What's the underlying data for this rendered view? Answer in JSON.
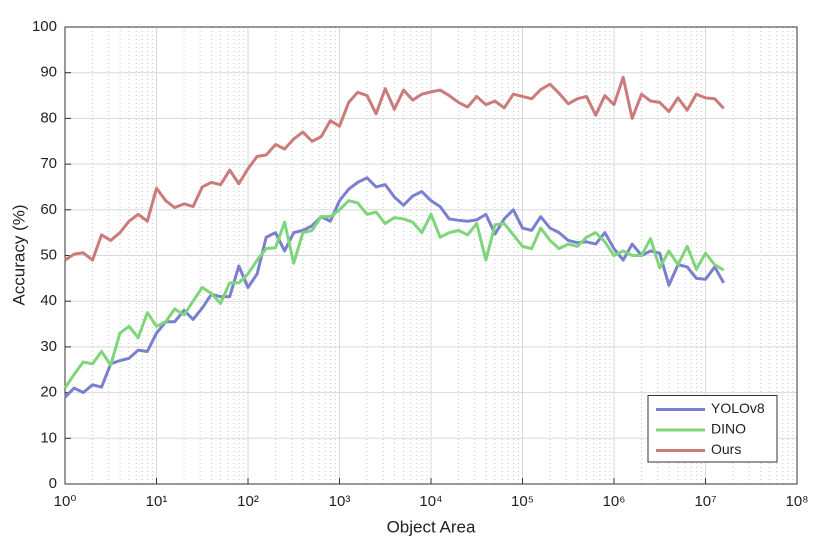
{
  "chart_data": {
    "type": "line",
    "xlabel": "Object Area",
    "ylabel": "Accuracy (%)",
    "x_scale": "log",
    "grid": true,
    "minor_grid": true,
    "legend_position": "lower right",
    "xlim": [
      1,
      100000000
    ],
    "ylim": [
      0,
      100
    ],
    "xticks": [
      {
        "value": 1,
        "label": "10⁰"
      },
      {
        "value": 10,
        "label": "10¹"
      },
      {
        "value": 100,
        "label": "10²"
      },
      {
        "value": 1000,
        "label": "10³"
      },
      {
        "value": 10000,
        "label": "10⁴"
      },
      {
        "value": 100000,
        "label": "10⁵"
      },
      {
        "value": 1000000,
        "label": "10⁶"
      },
      {
        "value": 10000000,
        "label": "10⁷"
      },
      {
        "value": 100000000,
        "label": "10⁸"
      }
    ],
    "yticks": [
      0,
      10,
      20,
      30,
      40,
      50,
      60,
      70,
      80,
      90,
      100
    ],
    "x": [
      1,
      1.26,
      1.58,
      2,
      2.51,
      3.16,
      3.98,
      5.01,
      6.31,
      7.94,
      10,
      12.6,
      15.8,
      20,
      25.1,
      31.6,
      39.8,
      50.1,
      63.1,
      79.4,
      100,
      126,
      158,
      200,
      251,
      316,
      398,
      501,
      631,
      794,
      1000,
      1260,
      1580,
      2000,
      2510,
      3160,
      3980,
      5010,
      6310,
      7940,
      10000,
      12600,
      15800,
      20000,
      25100,
      31600,
      39800,
      50100,
      63100,
      79400,
      100000,
      126000,
      158000,
      200000,
      251000,
      316000,
      398000,
      501000,
      631000,
      794000,
      1000000,
      1260000,
      1580000,
      2000000,
      2510000,
      3160000,
      3980000,
      5010000,
      6310000,
      7940000,
      10000000,
      12600000,
      15800000
    ],
    "series": [
      {
        "name": "YOLOv8",
        "color": "#7b7fd0",
        "values": [
          19,
          21,
          20,
          21.7,
          21.2,
          26.3,
          27,
          27.5,
          29.3,
          29,
          33,
          35.5,
          35.5,
          38,
          36,
          38.5,
          41.5,
          41,
          41,
          47.7,
          43,
          46,
          54,
          55,
          51,
          55,
          55.5,
          56.5,
          58.5,
          57.5,
          62,
          64.5,
          66,
          67,
          65,
          65.5,
          62.8,
          61,
          63,
          64,
          62,
          60.7,
          58,
          57.7,
          57.5,
          57.8,
          59,
          54.7,
          58,
          60,
          56,
          55.5,
          58.5,
          56,
          55,
          53.3,
          52.8,
          53,
          52.5,
          55,
          51.5,
          49,
          52.5,
          50,
          51,
          50.5,
          43.5,
          48,
          47.5,
          45,
          44.8,
          47.5,
          44
        ]
      },
      {
        "name": "DINO",
        "color": "#7fd67a",
        "values": [
          21,
          24,
          26.7,
          26.3,
          29,
          26,
          33,
          34.5,
          32,
          37.5,
          34.5,
          35.5,
          38.3,
          37,
          40,
          43,
          41.7,
          39.5,
          44,
          44,
          46,
          49,
          51.5,
          51.7,
          57.3,
          48.3,
          55,
          55.5,
          58.5,
          58.5,
          60,
          62,
          61.5,
          59,
          59.5,
          57,
          58.3,
          58,
          57.3,
          55,
          59,
          54,
          55,
          55.5,
          54.5,
          57,
          49,
          56.7,
          57,
          54.5,
          52,
          51.5,
          56,
          53.3,
          51.5,
          52.5,
          52,
          54,
          55,
          53,
          50,
          51,
          50,
          50,
          53.7,
          47.3,
          51,
          48,
          52,
          47,
          50.5,
          48,
          46.8
        ]
      },
      {
        "name": "Ours",
        "color": "#cc7b7b",
        "values": [
          49,
          50.3,
          50.6,
          49,
          54.5,
          53.3,
          55,
          57.5,
          59,
          57.5,
          64.7,
          62,
          60.5,
          61.3,
          60.7,
          65,
          66,
          65.5,
          68.7,
          65.7,
          69,
          71.7,
          72,
          74.3,
          73.3,
          75.5,
          77,
          75,
          76,
          79.5,
          78.3,
          83.5,
          85.7,
          85,
          81,
          86.5,
          82,
          86.2,
          84,
          85.3,
          85.8,
          86.2,
          85,
          83.5,
          82.5,
          84.8,
          83,
          83.8,
          82.3,
          85.3,
          84.8,
          84.3,
          86.3,
          87.5,
          85.5,
          83.2,
          84.3,
          84.8,
          80.7,
          85,
          83,
          89,
          80,
          85.3,
          83.8,
          83.5,
          81.5,
          84.5,
          81.8,
          85.3,
          84.5,
          84.3,
          82.2
        ]
      }
    ]
  }
}
